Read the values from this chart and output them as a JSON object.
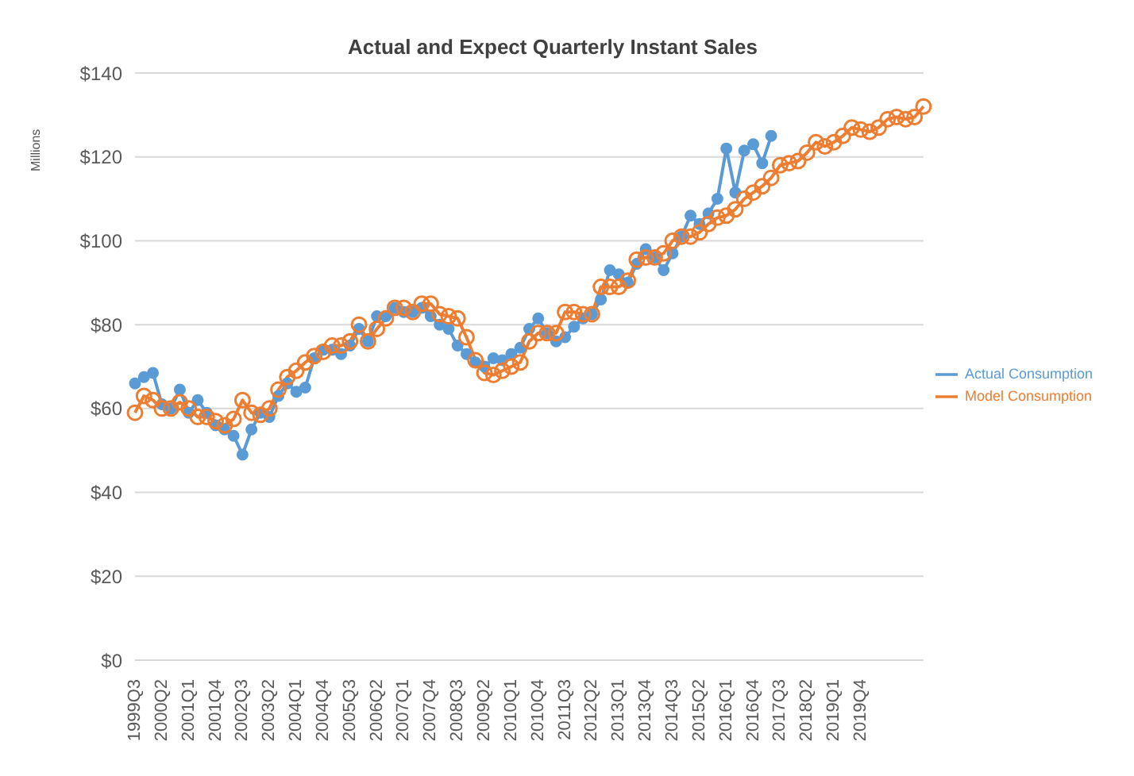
{
  "chart_data": {
    "type": "line",
    "title": "Actual and Expect Quarterly Instant Sales",
    "ylabel": "Millions",
    "categories": [
      "1999Q3",
      null,
      null,
      "2000Q2",
      null,
      null,
      "2001Q1",
      null,
      null,
      "2001Q4",
      null,
      null,
      "2002Q3",
      null,
      null,
      "2003Q2",
      null,
      null,
      "2004Q1",
      null,
      null,
      "2004Q4",
      null,
      null,
      "2005Q3",
      null,
      null,
      "2006Q2",
      null,
      null,
      "2007Q1",
      null,
      null,
      "2007Q4",
      null,
      null,
      "2008Q3",
      null,
      null,
      "2009Q2",
      null,
      null,
      "2010Q1",
      null,
      null,
      "2010Q4",
      null,
      null,
      "2011Q3",
      null,
      null,
      "2012Q2",
      null,
      null,
      "2013Q1",
      null,
      null,
      "2013Q4",
      null,
      null,
      "2014Q3",
      null,
      null,
      "2015Q2",
      null,
      null,
      "2016Q1",
      null,
      null,
      "2016Q4",
      null,
      null,
      "2017Q3",
      null,
      null,
      "2018Q2",
      null,
      null,
      "2019Q1",
      null,
      null,
      "2019Q4",
      null,
      null,
      null,
      null,
      null,
      null,
      null
    ],
    "series": [
      {
        "name": "Actual Consumption",
        "color": "#5b9bd5",
        "values": [
          66,
          67.5,
          68.5,
          61,
          60,
          64.5,
          59,
          62,
          59,
          56,
          55,
          53.5,
          49,
          55,
          59,
          58,
          63,
          66,
          64,
          65,
          72,
          74,
          74,
          73,
          75,
          79,
          76,
          82,
          82,
          84,
          83,
          83,
          84,
          82,
          80,
          79,
          75,
          73,
          71,
          70,
          72,
          71.5,
          73,
          74.5,
          79,
          81.5,
          78,
          76,
          77,
          79.5,
          81.5,
          82.5,
          86,
          93,
          92,
          90,
          94.5,
          98,
          96,
          93,
          97,
          101,
          106,
          104,
          106.5,
          110,
          122,
          111.5,
          121.5,
          123,
          118.5,
          125,
          null,
          null,
          null,
          null,
          null,
          null,
          null,
          null,
          null,
          null,
          null,
          null,
          null,
          null,
          null,
          null,
          null
        ]
      },
      {
        "name": "Model Consumption",
        "color": "#ed7d31",
        "values": [
          59,
          63,
          62,
          60,
          60,
          61.5,
          60,
          58,
          58,
          57,
          56,
          57.5,
          62,
          59,
          58.5,
          60,
          64.5,
          67.5,
          69,
          71,
          72.5,
          73.5,
          75,
          75,
          76,
          80,
          76,
          79,
          81.5,
          84,
          84,
          83,
          85,
          85,
          82.5,
          82,
          81.5,
          77,
          71.5,
          68.5,
          68,
          69,
          70,
          71,
          76,
          78,
          78,
          78,
          83,
          83,
          82.5,
          82.5,
          89,
          89,
          89,
          90.5,
          95.5,
          96,
          96,
          97,
          100,
          101,
          101,
          102,
          104,
          105.5,
          106,
          107.5,
          110,
          111.5,
          113,
          115,
          118,
          118.5,
          119,
          121,
          123.5,
          122.5,
          123.5,
          125,
          127,
          126.5,
          126,
          127,
          129,
          129.5,
          129,
          129.5,
          132
        ]
      }
    ],
    "ylim": [
      0,
      140
    ],
    "yticks": [
      {
        "value": 0,
        "label": "$0"
      },
      {
        "value": 20,
        "label": "$20"
      },
      {
        "value": 40,
        "label": "$40"
      },
      {
        "value": 60,
        "label": "$60"
      },
      {
        "value": 80,
        "label": "$80"
      },
      {
        "value": 100,
        "label": "$100"
      },
      {
        "value": 120,
        "label": "$120"
      },
      {
        "value": 140,
        "label": "$140"
      }
    ],
    "grid": "y",
    "legend": "right",
    "marker": "circle"
  }
}
